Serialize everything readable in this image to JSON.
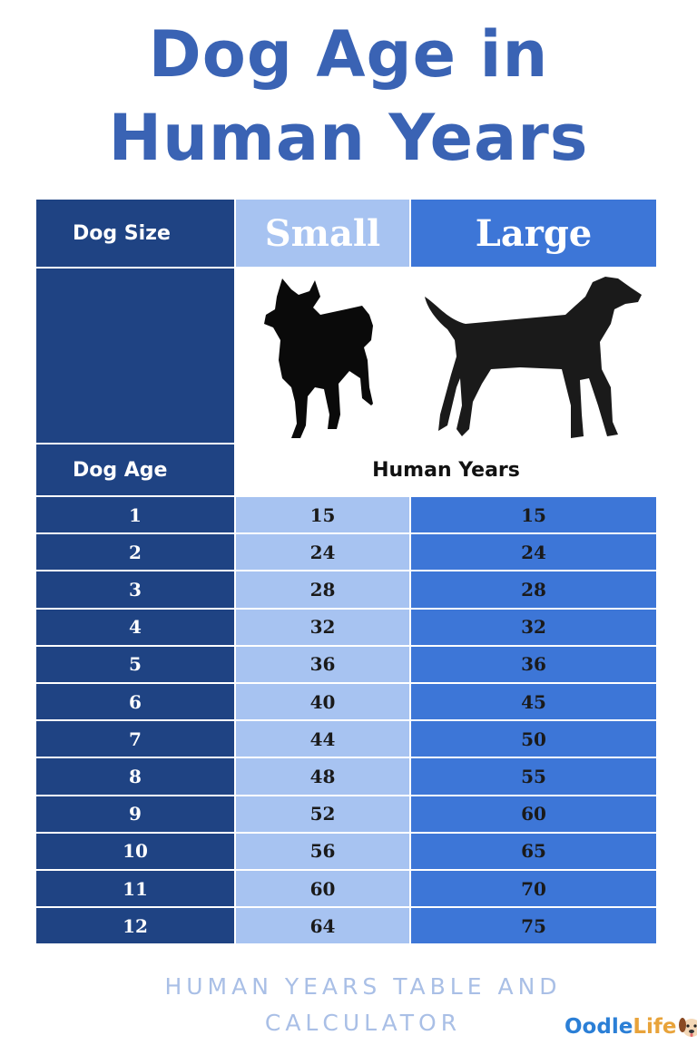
{
  "title": {
    "line1": "Dog Age in",
    "line2": "Human Years"
  },
  "table": {
    "dog_size_label": "Dog Size",
    "small_label": "Small",
    "large_label": "Large",
    "dog_age_label": "Dog Age",
    "human_years_label": "Human Years",
    "rows": [
      {
        "age": "1",
        "small": "15",
        "large": "15"
      },
      {
        "age": "2",
        "small": "24",
        "large": "24"
      },
      {
        "age": "3",
        "small": "28",
        "large": "28"
      },
      {
        "age": "4",
        "small": "32",
        "large": "32"
      },
      {
        "age": "5",
        "small": "36",
        "large": "36"
      },
      {
        "age": "6",
        "small": "40",
        "large": "45"
      },
      {
        "age": "7",
        "small": "44",
        "large": "50"
      },
      {
        "age": "8",
        "small": "48",
        "large": "55"
      },
      {
        "age": "9",
        "small": "52",
        "large": "60"
      },
      {
        "age": "10",
        "small": "56",
        "large": "65"
      },
      {
        "age": "11",
        "small": "60",
        "large": "70"
      },
      {
        "age": "12",
        "small": "64",
        "large": "75"
      }
    ]
  },
  "footer": {
    "line1": "HUMAN YEARS TABLE AND",
    "line2": "CALCULATOR"
  },
  "logo": {
    "part1": "Oodle",
    "part2": "Life"
  },
  "colors": {
    "title": "#3a63b4",
    "dark": "#1f4383",
    "small": "#a7c3f1",
    "large": "#3d76d7"
  },
  "icons": {
    "small_dog": "spitz-silhouette-icon",
    "large_dog": "labrador-silhouette-icon",
    "logo_dog": "dog-face-icon"
  }
}
